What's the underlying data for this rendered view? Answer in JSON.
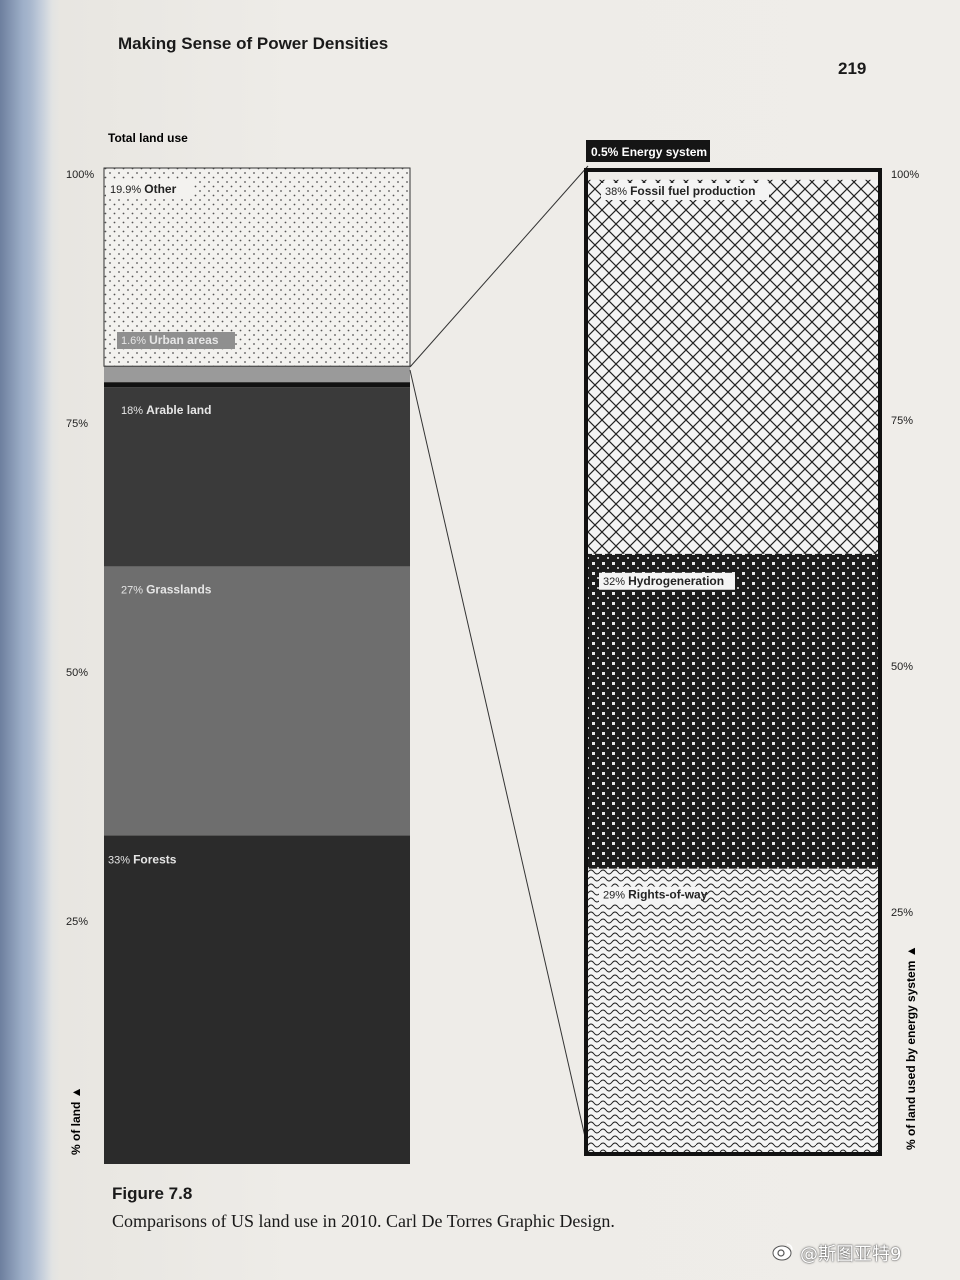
{
  "page": {
    "running_head": "Making Sense of Power Densities",
    "page_number": "219",
    "figure_label": "Figure 7.8",
    "caption": "Comparisons of US land use in 2010. Carl De Torres Graphic Design.",
    "watermark": "@斯图亚特9"
  },
  "chart_data": [
    {
      "type": "bar",
      "stacked": true,
      "title": "Total land use",
      "ylabel": "% of land",
      "ylim": [
        0,
        100
      ],
      "yticks": [
        "100%",
        "75%",
        "50%",
        "25%"
      ],
      "series": [
        {
          "name": "Forests",
          "pct_label": "33%",
          "value": 33,
          "color": "#2b2b2b"
        },
        {
          "name": "Grasslands",
          "pct_label": "27%",
          "value": 27,
          "color": "#6e6e6e"
        },
        {
          "name": "Arable land",
          "pct_label": "18%",
          "value": 18,
          "color": "#3a3a3a"
        },
        {
          "name": "Energy system",
          "pct_label": "0.5%",
          "value": 0.5,
          "color": "#111111"
        },
        {
          "name": "Urban areas",
          "pct_label": "1.6%",
          "value": 1.6,
          "color": "#9a9a9a"
        },
        {
          "name": "Other",
          "pct_label": "19.9%",
          "value": 19.9,
          "color": "#f2f1ee"
        }
      ]
    },
    {
      "type": "bar",
      "stacked": true,
      "title": "0.5% Energy system",
      "ylabel": "% of land used by energy system",
      "ylim": [
        0,
        100
      ],
      "yticks": [
        "100%",
        "75%",
        "50%",
        "25%"
      ],
      "series": [
        {
          "name": "Rights-of-way",
          "pct_label": "29%",
          "value": 29,
          "pattern": "squiggle"
        },
        {
          "name": "Hydrogeneration",
          "pct_label": "32%",
          "value": 32,
          "pattern": "dots-dark"
        },
        {
          "name": "Fossil fuel production",
          "pct_label": "38%",
          "value": 38,
          "pattern": "crosshatch"
        }
      ]
    }
  ]
}
